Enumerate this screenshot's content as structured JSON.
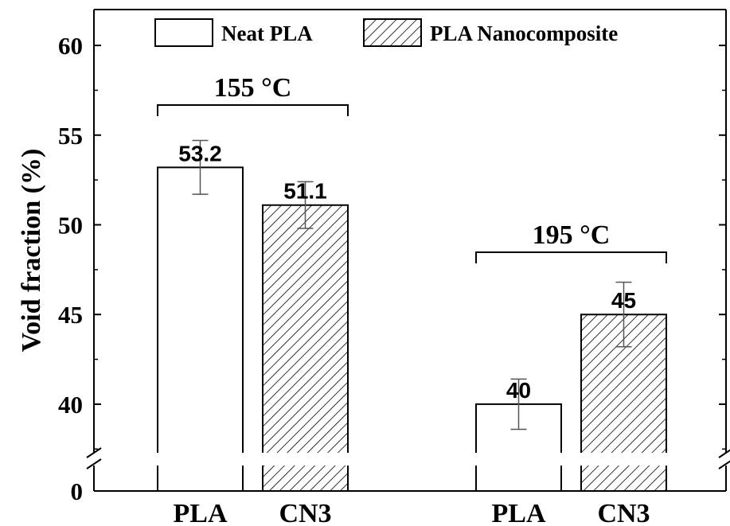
{
  "chart_data": {
    "type": "bar",
    "ylabel": "Void fraction (%)",
    "ylim": [
      38,
      62
    ],
    "y_axis_break": true,
    "yticks": [
      0,
      40,
      45,
      50,
      55,
      60
    ],
    "legend": {
      "placement": "top",
      "entries": [
        {
          "label": "Neat PLA",
          "pattern": "solid-white"
        },
        {
          "label": "PLA Nanocomposite",
          "pattern": "diagonal-hatch"
        }
      ]
    },
    "groups": [
      {
        "label": "155 °C",
        "bars": [
          {
            "category": "PLA",
            "value": 53.2,
            "value_label": "53.2",
            "error": 1.5,
            "pattern": "solid-white"
          },
          {
            "category": "CN3",
            "value": 51.1,
            "value_label": "51.1",
            "error": 1.3,
            "pattern": "diagonal-hatch"
          }
        ]
      },
      {
        "label": "195 °C",
        "bars": [
          {
            "category": "PLA",
            "value": 40,
            "value_label": "40",
            "error": 1.4,
            "pattern": "solid-white"
          },
          {
            "category": "CN3",
            "value": 45,
            "value_label": "45",
            "error": 1.8,
            "pattern": "diagonal-hatch"
          }
        ]
      }
    ],
    "colors": {
      "bar_edge": "#000000",
      "bar_fill": "#ffffff",
      "hatch": "#000000",
      "error_bar": "#555555"
    }
  }
}
